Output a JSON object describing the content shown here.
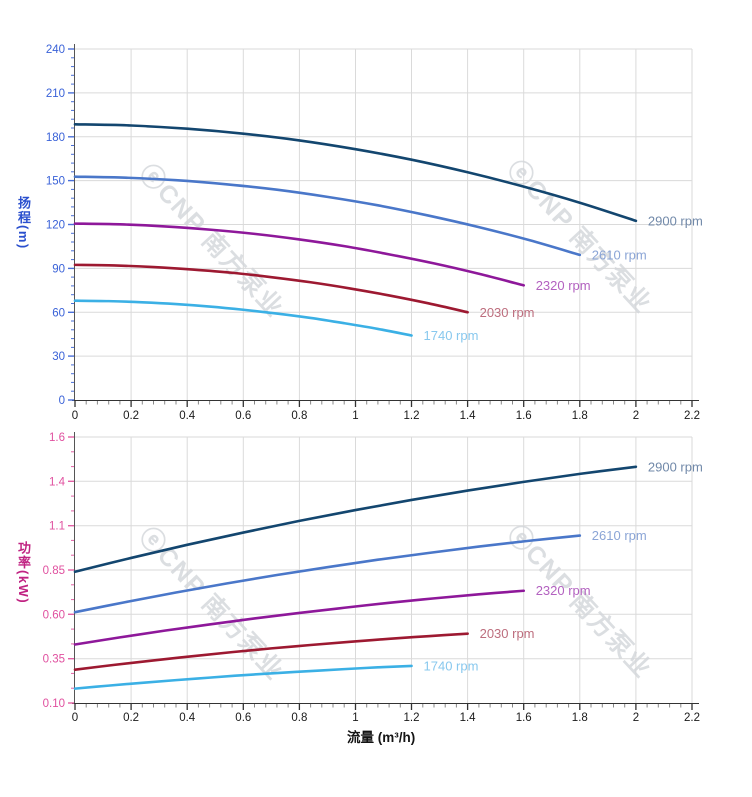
{
  "watermark": {
    "text": "ⓔCNP 南方泵业",
    "color": "#d3d6da"
  },
  "chart_data": [
    {
      "type": "line",
      "name": "head-chart",
      "ylabel": "扬程(m)",
      "xlabel": "",
      "xlim": [
        0,
        2.2
      ],
      "ylim": [
        0,
        240
      ],
      "grid": true,
      "legend_position": "inline-right-of-curve-end",
      "x_ticks": {
        "values": [
          0,
          0.2,
          0.4,
          0.6,
          0.8,
          1,
          1.2,
          1.4,
          1.6,
          1.8,
          2,
          2.2
        ],
        "labels": [
          "0",
          "0.2",
          "0.4",
          "0.6",
          "0.8",
          "1",
          "1.2",
          "1.4",
          "1.6",
          "1.8",
          "2",
          "2.2"
        ],
        "minor_divisions": 5
      },
      "y_ticks": {
        "values": [
          0,
          30,
          60,
          90,
          120,
          150,
          180,
          210,
          240
        ],
        "labels": [
          "0",
          "30",
          "60",
          "90",
          "120",
          "150",
          "180",
          "210",
          "240"
        ],
        "minor_divisions": 5
      },
      "tick_label_color": "#3a62d8",
      "tick_mark_color": "#4a6fd9",
      "series": [
        {
          "name": "2900 rpm",
          "color": "#13466f",
          "label_color": "#7189a9",
          "x": [
            0,
            0.2,
            0.4,
            0.6,
            0.8,
            1,
            1.2,
            1.4,
            1.6,
            1.8,
            2
          ],
          "y": [
            188.5,
            187.7,
            185.5,
            182.1,
            177.5,
            171.5,
            164.3,
            155.7,
            145.9,
            134.9,
            122.5
          ]
        },
        {
          "name": "2610 rpm",
          "color": "#4a77c9",
          "label_color": "#8ba5d6",
          "x": [
            0,
            0.18,
            0.36,
            0.54,
            0.72,
            0.9,
            1.08,
            1.26,
            1.44,
            1.62,
            1.8
          ],
          "y": [
            152.7,
            152.0,
            150.3,
            147.5,
            143.8,
            138.9,
            133.1,
            126.1,
            118.2,
            109.3,
            99.2
          ]
        },
        {
          "name": "2320 rpm",
          "color": "#8e189a",
          "label_color": "#b362c0",
          "x": [
            0,
            0.16,
            0.32,
            0.48,
            0.64,
            0.8,
            0.96,
            1.12,
            1.28,
            1.44,
            1.6
          ],
          "y": [
            120.6,
            120.1,
            118.7,
            116.5,
            113.6,
            109.8,
            105.2,
            99.6,
            93.4,
            86.3,
            78.4
          ]
        },
        {
          "name": "2030 rpm",
          "color": "#9d1931",
          "label_color": "#bd6e7e",
          "x": [
            0,
            0.14,
            0.28,
            0.42,
            0.56,
            0.7,
            0.84,
            0.98,
            1.12,
            1.26,
            1.4
          ],
          "y": [
            92.4,
            92.0,
            90.9,
            89.2,
            87.0,
            84.0,
            80.5,
            76.3,
            71.5,
            66.1,
            60.0
          ]
        },
        {
          "name": "1740 rpm",
          "color": "#3bb0e5",
          "label_color": "#88c8ee",
          "x": [
            0,
            0.12,
            0.24,
            0.36,
            0.48,
            0.6,
            0.72,
            0.84,
            0.96,
            1.08,
            1.2
          ],
          "y": [
            67.9,
            67.6,
            66.8,
            65.6,
            63.9,
            61.7,
            59.1,
            56.1,
            52.5,
            48.6,
            44.1
          ]
        }
      ]
    },
    {
      "type": "line",
      "name": "power-chart",
      "ylabel": "功率(kW)",
      "xlabel": "流量 (m³/h)",
      "xlim": [
        0,
        2.2
      ],
      "ylim": [
        0.1,
        1.6
      ],
      "grid": true,
      "legend_position": "inline-right-of-curve-end",
      "x_ticks": {
        "values": [
          0,
          0.2,
          0.4,
          0.6,
          0.8,
          1,
          1.2,
          1.4,
          1.6,
          1.8,
          2,
          2.2
        ],
        "labels": [
          "0",
          "0.2",
          "0.4",
          "0.6",
          "0.8",
          "1",
          "1.2",
          "1.4",
          "1.6",
          "1.8",
          "2",
          "2.2"
        ],
        "minor_divisions": 5
      },
      "y_ticks": {
        "values": [
          0.1,
          0.35,
          0.6,
          0.85,
          1.1,
          1.35,
          1.6
        ],
        "labels": [
          "0.10",
          "0.35",
          "0.60",
          "0.85",
          "1.1",
          "1.4",
          "1.6"
        ],
        "minor_divisions": 3
      },
      "tick_label_color": "#e0509f",
      "tick_mark_color": "#e360a6",
      "series": [
        {
          "name": "2900 rpm",
          "color": "#13466f",
          "label_color": "#7189a9",
          "x": [
            0,
            0.2,
            0.4,
            0.6,
            0.8,
            1,
            1.2,
            1.4,
            1.6,
            1.8,
            2
          ],
          "y": [
            0.84,
            0.918,
            0.992,
            1.061,
            1.127,
            1.188,
            1.245,
            1.298,
            1.347,
            1.392,
            1.432
          ]
        },
        {
          "name": "2610 rpm",
          "color": "#4a77c9",
          "label_color": "#8ba5d6",
          "x": [
            0,
            0.18,
            0.36,
            0.54,
            0.72,
            0.9,
            1.08,
            1.26,
            1.44,
            1.62,
            1.8
          ],
          "y": [
            0.612,
            0.669,
            0.723,
            0.774,
            0.822,
            0.866,
            0.908,
            0.946,
            0.982,
            1.015,
            1.044
          ]
        },
        {
          "name": "2320 rpm",
          "color": "#8e189a",
          "label_color": "#b362c0",
          "x": [
            0,
            0.16,
            0.32,
            0.48,
            0.64,
            0.8,
            0.96,
            1.12,
            1.28,
            1.44,
            1.6
          ],
          "y": [
            0.43,
            0.47,
            0.508,
            0.543,
            0.577,
            0.608,
            0.637,
            0.665,
            0.69,
            0.713,
            0.733
          ]
        },
        {
          "name": "2030 rpm",
          "color": "#9d1931",
          "label_color": "#bd6e7e",
          "x": [
            0,
            0.14,
            0.28,
            0.42,
            0.56,
            0.7,
            0.84,
            0.98,
            1.12,
            1.26,
            1.4
          ],
          "y": [
            0.288,
            0.315,
            0.34,
            0.364,
            0.387,
            0.408,
            0.427,
            0.445,
            0.462,
            0.477,
            0.491
          ]
        },
        {
          "name": "1740 rpm",
          "color": "#3bb0e5",
          "label_color": "#88c8ee",
          "x": [
            0,
            0.12,
            0.24,
            0.36,
            0.48,
            0.6,
            0.72,
            0.84,
            0.96,
            1.08,
            1.2
          ],
          "y": [
            0.181,
            0.198,
            0.214,
            0.229,
            0.243,
            0.257,
            0.269,
            0.28,
            0.291,
            0.301,
            0.309
          ]
        }
      ]
    }
  ]
}
